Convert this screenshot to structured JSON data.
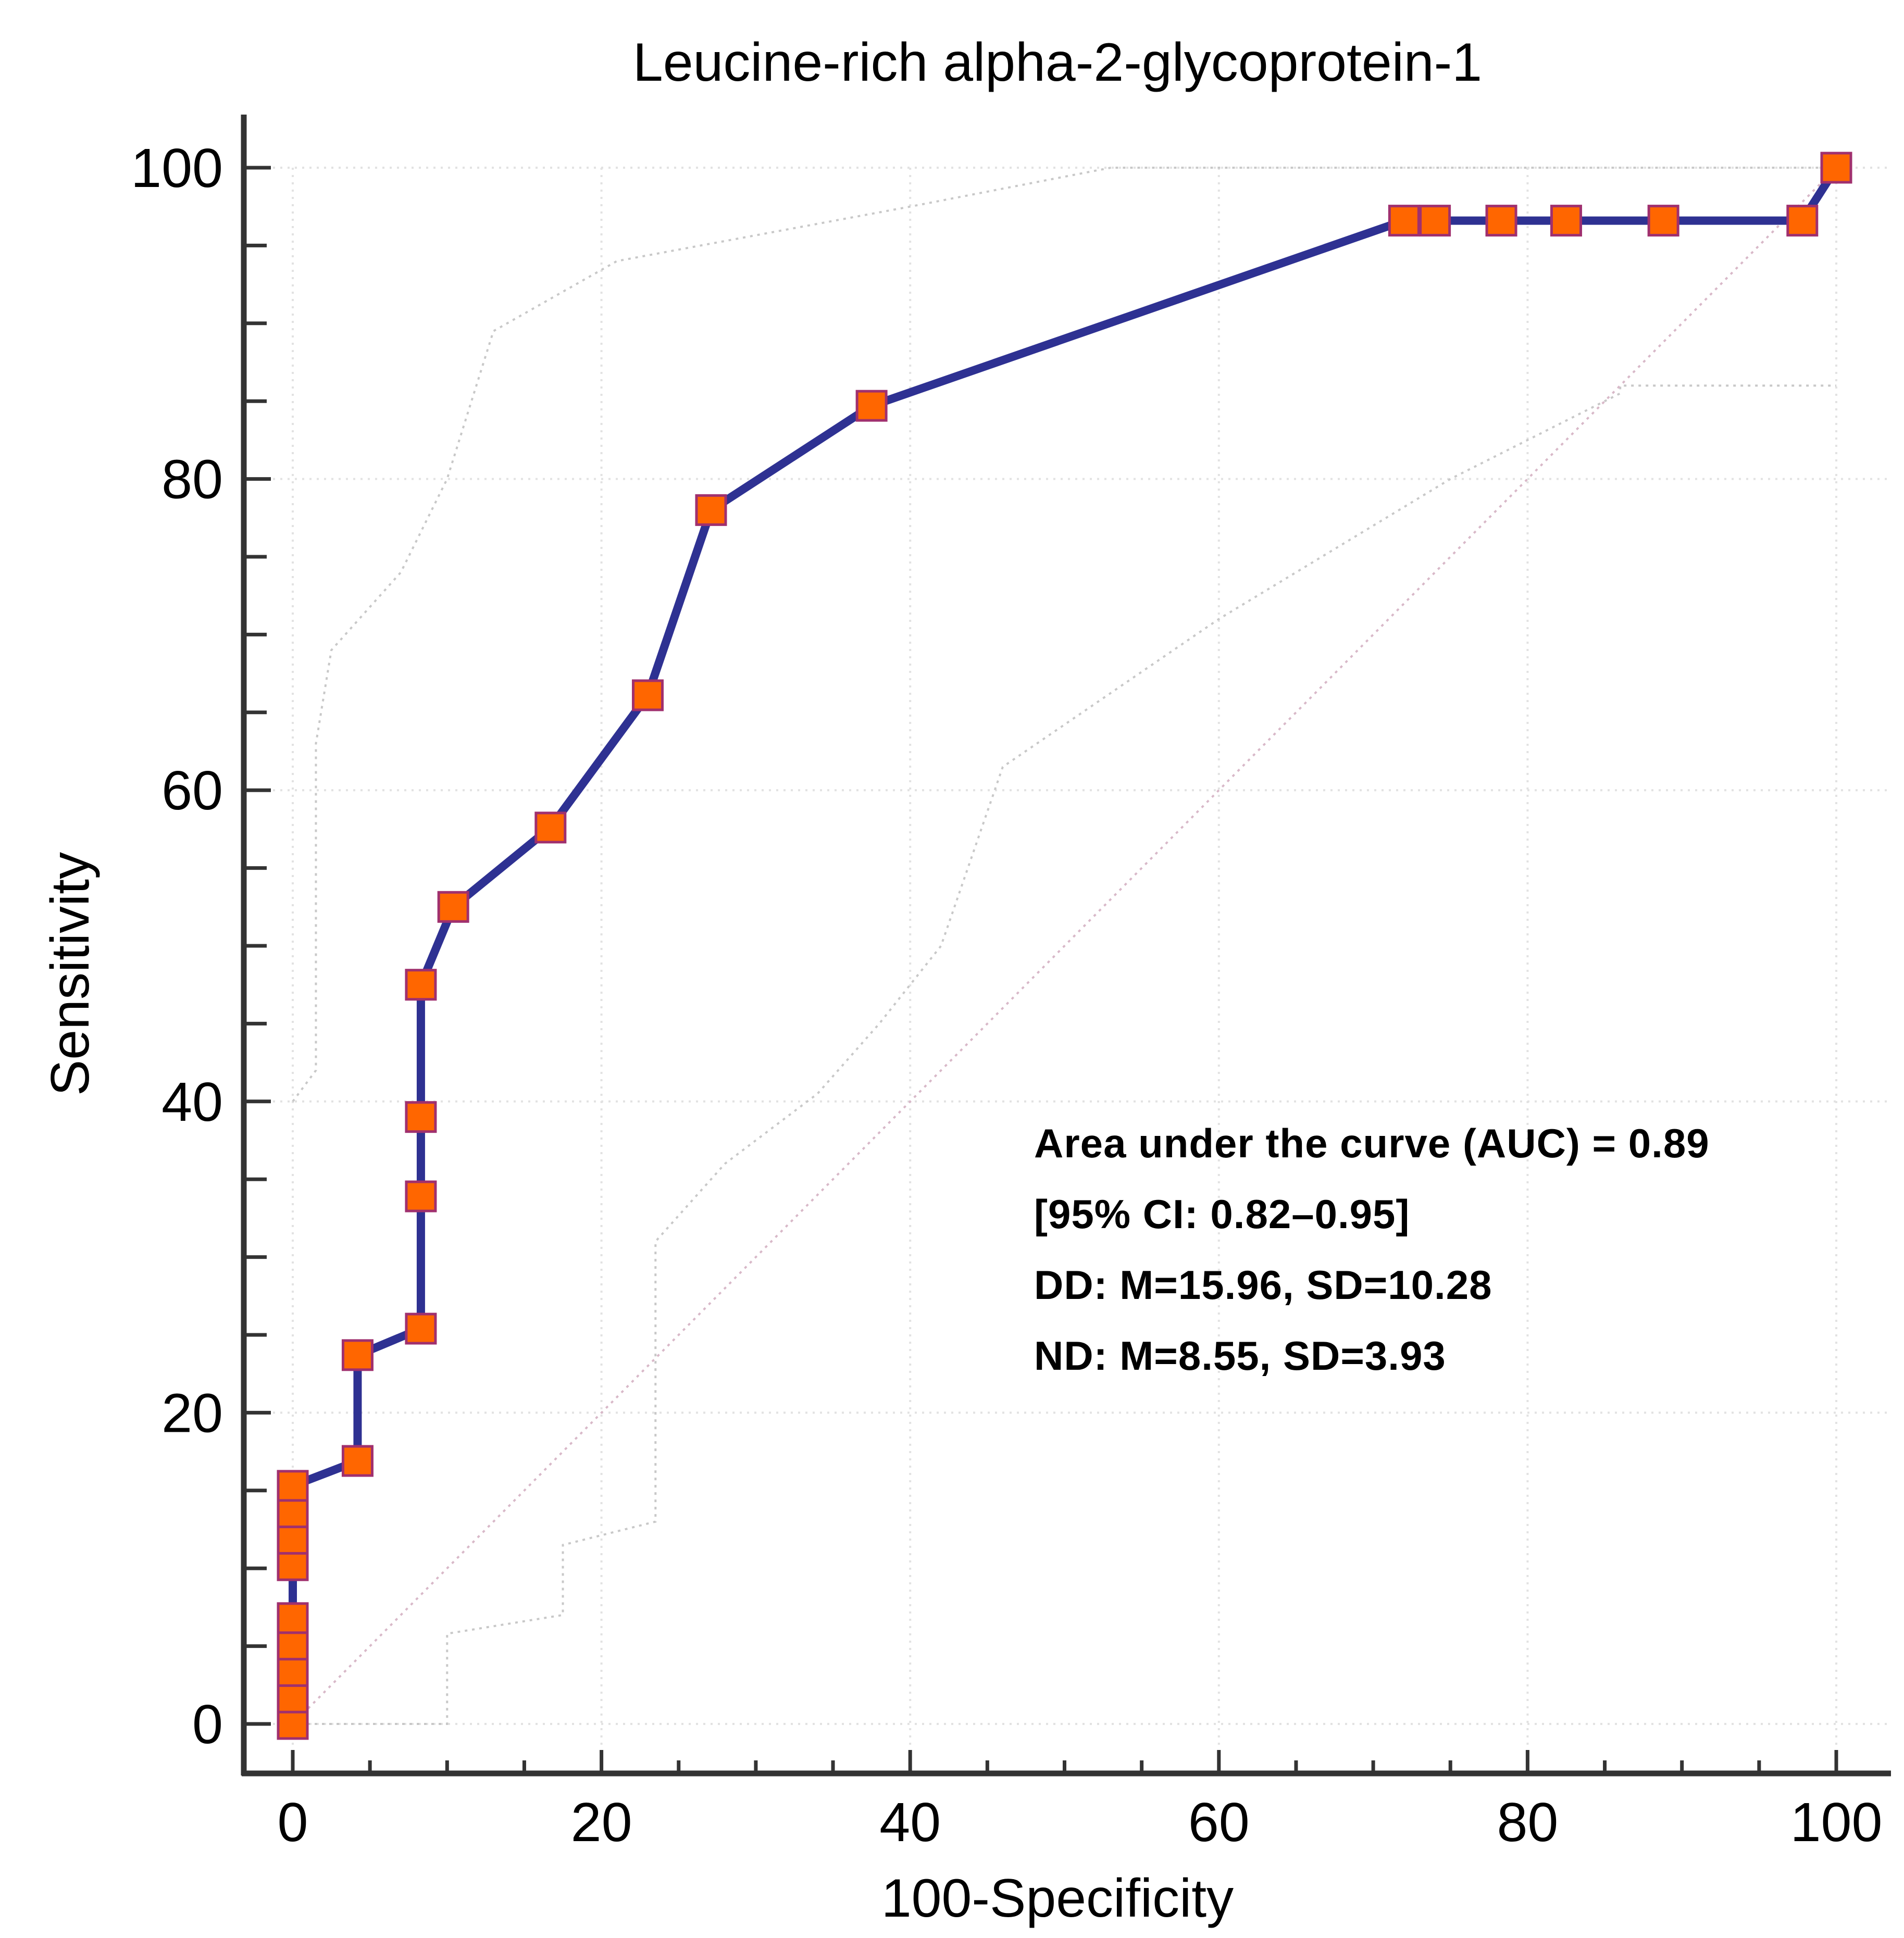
{
  "chart_data": {
    "type": "line",
    "title": "Leucine-rich alpha-2-glycoprotein-1",
    "xlabel": "100-Specificity",
    "ylabel": "Sensitivity",
    "xlim": [
      0,
      100
    ],
    "ylim": [
      0,
      100
    ],
    "xticks": [
      "0",
      "20",
      "40",
      "60",
      "80",
      "100"
    ],
    "yticks": [
      "0",
      "20",
      "40",
      "60",
      "80",
      "100"
    ],
    "grid": true,
    "series": [
      {
        "name": "ROC curve",
        "color": "#2e3192",
        "marker_color": "#ff6600",
        "marker_border": "#a0306e",
        "points": [
          [
            0,
            0
          ],
          [
            0,
            1.7
          ],
          [
            0,
            3.4
          ],
          [
            0,
            5.1
          ],
          [
            0,
            6.8
          ],
          [
            0,
            10.2
          ],
          [
            0,
            11.9
          ],
          [
            0,
            13.6
          ],
          [
            0,
            15.3
          ],
          [
            4.2,
            16.9
          ],
          [
            4.2,
            23.7
          ],
          [
            8.3,
            25.4
          ],
          [
            8.3,
            33.9
          ],
          [
            8.3,
            39.0
          ],
          [
            8.3,
            47.5
          ],
          [
            10.4,
            52.5
          ],
          [
            16.7,
            57.6
          ],
          [
            23.0,
            66.1
          ],
          [
            27.1,
            78.0
          ],
          [
            37.5,
            84.7
          ],
          [
            72.0,
            96.6
          ],
          [
            74.0,
            96.6
          ],
          [
            78.3,
            96.6
          ],
          [
            82.5,
            96.6
          ],
          [
            88.8,
            96.6
          ],
          [
            97.8,
            96.6
          ],
          [
            100,
            100
          ]
        ]
      },
      {
        "name": "Upper 95% CI bound",
        "color": "#c8c8c8",
        "points": [
          [
            0,
            40
          ],
          [
            1.5,
            42
          ],
          [
            1.5,
            63
          ],
          [
            2.5,
            69
          ],
          [
            7,
            74
          ],
          [
            10,
            80
          ],
          [
            13,
            89.5
          ],
          [
            21,
            94
          ],
          [
            40,
            97.5
          ],
          [
            53,
            100
          ],
          [
            100,
            100
          ]
        ]
      },
      {
        "name": "Lower 95% CI bound",
        "color": "#c8c8c8",
        "points": [
          [
            0,
            0
          ],
          [
            10,
            0
          ],
          [
            10,
            5.8
          ],
          [
            17.5,
            7
          ],
          [
            17.5,
            11.5
          ],
          [
            23.5,
            13
          ],
          [
            23.5,
            31
          ],
          [
            28,
            36
          ],
          [
            34,
            40.5
          ],
          [
            38,
            45
          ],
          [
            42,
            50
          ],
          [
            46,
            61.5
          ],
          [
            60,
            71
          ],
          [
            75,
            80
          ],
          [
            86,
            85.5
          ],
          [
            86,
            86
          ],
          [
            100,
            86
          ]
        ]
      },
      {
        "name": "Reference diagonal",
        "color": "#d8b8c8",
        "points": [
          [
            0,
            0
          ],
          [
            100,
            100
          ]
        ]
      }
    ],
    "annotations": [
      "Area under the curve (AUC) = 0.89",
      "[95% CI: 0.82–0.95]",
      "DD: M=15.96, SD=10.28",
      "ND: M=8.55, SD=3.93"
    ]
  }
}
